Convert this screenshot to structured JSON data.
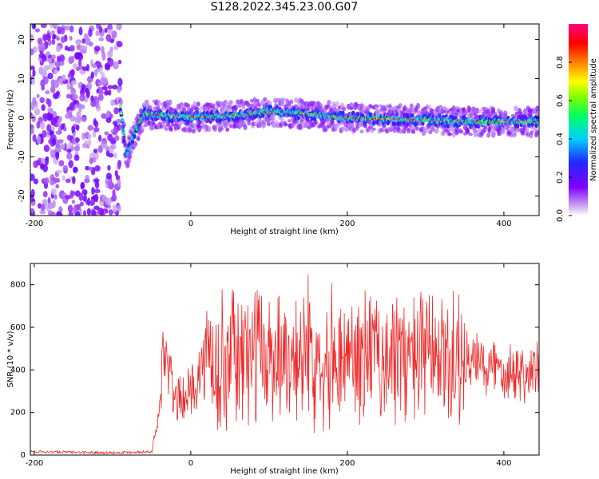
{
  "title": "S128.2022.345.23.00.G07",
  "colors": {
    "snr_line": "#ee2a2a",
    "axis": "#000000"
  },
  "chart_data": [
    {
      "type": "heatmap",
      "xlabel": "Height of straight line (km)",
      "ylabel": "Frequency (Hz)",
      "xlim": [
        -205,
        445
      ],
      "ylim": [
        -25,
        24
      ],
      "x_ticks": [
        -200,
        0,
        200,
        400
      ],
      "y_ticks": [
        -20,
        -10,
        0,
        10,
        20
      ],
      "colorbar": {
        "label": "Normalized spectral amplitude",
        "range": [
          0.0,
          1.0
        ],
        "ticks": [
          0.0,
          0.2,
          0.4,
          0.6,
          0.8
        ],
        "colormap": "rainbow (white→purple→blue→cyan→green→yellow→red→magenta)"
      },
      "features": {
        "noise_region_x": [
          -205,
          -90
        ],
        "trace_start_x": -90,
        "dip_x": -82,
        "dip_freq": -10,
        "trace_freq": [
          [
            -90,
            3
          ],
          [
            -82,
            -10
          ],
          [
            -72,
            -4
          ],
          [
            -60,
            1
          ],
          [
            0,
            0
          ],
          [
            50,
            0.5
          ],
          [
            100,
            1.5
          ],
          [
            150,
            1
          ],
          [
            200,
            0
          ],
          [
            300,
            -0.5
          ],
          [
            350,
            -1
          ],
          [
            445,
            -1
          ]
        ]
      }
    },
    {
      "type": "line",
      "xlabel": "Height of straight line (km)",
      "ylabel": "SNR (10 * v/v)",
      "xlim": [
        -205,
        445
      ],
      "ylim": [
        0,
        900
      ],
      "x_ticks": [
        -200,
        0,
        200,
        400
      ],
      "y_ticks": [
        0,
        200,
        400,
        600,
        800
      ],
      "series": [
        {
          "values_summary": [
            [
              -205,
              10
            ],
            [
              -100,
              5
            ],
            [
              -50,
              10
            ],
            [
              -40,
              200
            ],
            [
              -35,
              500
            ],
            [
              -20,
              250
            ],
            [
              0,
              300
            ],
            [
              20,
              450
            ],
            [
              50,
              450
            ],
            [
              100,
              480
            ],
            [
              200,
              470
            ],
            [
              300,
              450
            ],
            [
              350,
              430
            ],
            [
              400,
              410
            ],
            [
              445,
              380
            ]
          ]
        }
      ]
    }
  ]
}
